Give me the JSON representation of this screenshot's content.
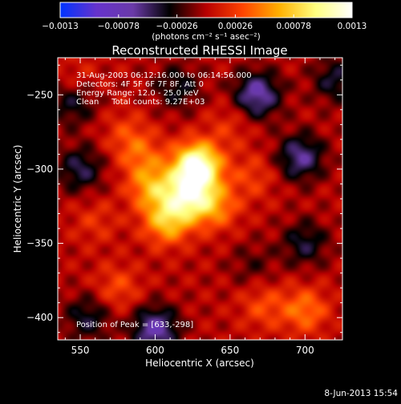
{
  "colorbar": {
    "tick_labels": [
      "-0.0013",
      "-0.00078",
      "-0.00026",
      "0.00026",
      "0.00078",
      "0.0013"
    ],
    "range": [
      -0.0013,
      0.0013
    ],
    "units_label": "(photons cm⁻² s⁻¹ asec⁻²)",
    "colors": [
      "#0033ff",
      "#6633cc",
      "#6a3aa8",
      "#000000",
      "#b80000",
      "#ff4400",
      "#ffb000",
      "#ffff80",
      "#ffffff"
    ]
  },
  "chart_data": {
    "type": "heatmap",
    "title": "Reconstructed RHESSI Image",
    "xlabel": "Heliocentric X (arcsec)",
    "ylabel": "Heliocentric Y (arcsec)",
    "xlim": [
      535,
      725
    ],
    "ylim": [
      -415,
      -225
    ],
    "x_ticks": [
      550,
      600,
      650,
      700
    ],
    "y_ticks": [
      -250,
      -300,
      -350,
      -400
    ],
    "x_tick_labels": [
      "550",
      "600",
      "650",
      "700"
    ],
    "y_tick_labels": [
      "-250",
      "-300",
      "-350",
      "-400"
    ],
    "value_range": [
      -0.0013,
      0.0013
    ],
    "annotations": [
      "31-Aug-2003 06:12:16.000 to 06:14:56.000",
      "Detectors: 4F 5F 6F 7F 8F, Att 0",
      "Energy Range: 12.0 - 25.0 keV",
      "Clean     Total counts: 9.27E+03"
    ],
    "peak_label": "Position of Peak = [633,-298]",
    "peak_position": [
      633,
      -298
    ],
    "sources": [
      {
        "x": 628,
        "y": -298,
        "value": 0.0013
      },
      {
        "x": 622,
        "y": -318,
        "value": 0.0009
      },
      {
        "x": 608,
        "y": -335,
        "value": 0.0007
      },
      {
        "x": 598,
        "y": -312,
        "value": 0.0006
      },
      {
        "x": 640,
        "y": -325,
        "value": 0.0005
      },
      {
        "x": 590,
        "y": -290,
        "value": 0.00035
      },
      {
        "x": 665,
        "y": -305,
        "value": 0.00025
      },
      {
        "x": 700,
        "y": -395,
        "value": 0.00045
      },
      {
        "x": 672,
        "y": -392,
        "value": 0.0003
      },
      {
        "x": 575,
        "y": -380,
        "value": 0.0003
      },
      {
        "x": 560,
        "y": -335,
        "value": 0.0002
      },
      {
        "x": 548,
        "y": -240,
        "value": 0.00018
      },
      {
        "x": 650,
        "y": -270,
        "value": 0.0002
      },
      {
        "x": 580,
        "y": -275,
        "value": 0.00022
      },
      {
        "x": 668,
        "y": -250,
        "value": -0.0007
      },
      {
        "x": 697,
        "y": -292,
        "value": -0.0006
      },
      {
        "x": 700,
        "y": -350,
        "value": -0.0004
      },
      {
        "x": 600,
        "y": -408,
        "value": -0.0007
      },
      {
        "x": 550,
        "y": -300,
        "value": -0.00045
      },
      {
        "x": 545,
        "y": -255,
        "value": -0.0004
      },
      {
        "x": 615,
        "y": -245,
        "value": -0.00035
      },
      {
        "x": 555,
        "y": -400,
        "value": -0.0004
      },
      {
        "x": 720,
        "y": -240,
        "value": -0.0004
      },
      {
        "x": 665,
        "y": -365,
        "value": -0.0002
      }
    ]
  },
  "footer": {
    "date": "8-Jun-2013 15:54"
  }
}
